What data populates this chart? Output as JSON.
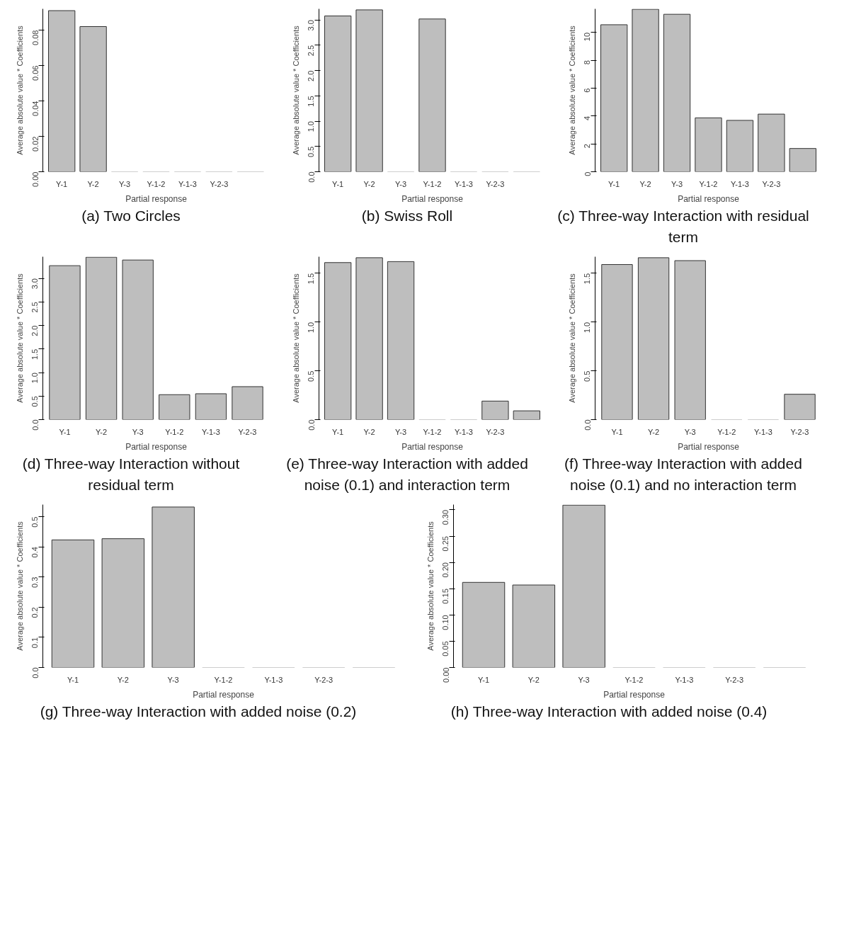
{
  "chart_data": [
    {
      "type": "bar",
      "title": "(a) Two Circles",
      "xlabel": "Partial response",
      "ylabel": "Average absolute value * Coefficients",
      "categories": [
        "Y-1",
        "Y-2",
        "Y-3",
        "Y-1-2",
        "Y-1-3",
        "Y-2-3",
        null
      ],
      "values": [
        0.091,
        0.082,
        0,
        0,
        0,
        0,
        0
      ],
      "color": "#bebebe",
      "ylim": [
        0,
        0.092
      ],
      "yticks": [
        {
          "value": 0,
          "label": "0.00"
        },
        0.02,
        0.04,
        0.06,
        0.08
      ],
      "grid": false
    },
    {
      "type": "bar",
      "title": "(b) Swiss Roll",
      "xlabel": "Partial response",
      "ylabel": "Average absolute value * Coefficients",
      "categories": [
        "Y-1",
        "Y-2",
        "Y-3",
        "Y-1-2",
        "Y-1-3",
        "Y-2-3",
        null
      ],
      "values": [
        3.08,
        3.2,
        0,
        3.02,
        0,
        0,
        0
      ],
      "color": "#bebebe",
      "ylim": [
        0,
        3.22
      ],
      "yticks": [
        {
          "value": 0,
          "label": "0.0"
        },
        0.5,
        {
          "value": 1,
          "label": "1.0"
        },
        1.5,
        {
          "value": 2,
          "label": "2.0"
        },
        2.5,
        {
          "value": 3,
          "label": "3.0"
        }
      ],
      "grid": false
    },
    {
      "type": "bar",
      "title": "(c) Three-way Interaction with residual term",
      "xlabel": "Partial response",
      "ylabel": "Average absolute value * Coefficients",
      "categories": [
        "Y-1",
        "Y-2",
        "Y-3",
        "Y-1-2",
        "Y-1-3",
        "Y-2-3",
        null
      ],
      "values": [
        10.56,
        11.67,
        11.31,
        3.87,
        3.69,
        4.14,
        1.67
      ],
      "color": "#bebebe",
      "ylim": [
        0,
        11.7
      ],
      "yticks": [
        0,
        2,
        4,
        6,
        8,
        10
      ],
      "grid": false
    },
    {
      "type": "bar",
      "title": "(d) Three-way Interaction without residual term",
      "xlabel": "Partial response",
      "ylabel": "Average absolute value * Coefficients",
      "categories": [
        "Y-1",
        "Y-2",
        "Y-3",
        "Y-1-2",
        "Y-1-3",
        "Y-2-3"
      ],
      "values": [
        3.27,
        3.45,
        3.39,
        0.53,
        0.55,
        0.7
      ],
      "color": "#bebebe",
      "ylim": [
        0,
        3.46
      ],
      "yticks": [
        {
          "value": 0,
          "label": "0.0"
        },
        0.5,
        {
          "value": 1,
          "label": "1.0"
        },
        1.5,
        {
          "value": 2,
          "label": "2.0"
        },
        2.5,
        {
          "value": 3,
          "label": "3.0"
        }
      ],
      "grid": false
    },
    {
      "type": "bar",
      "title": "(e) Three-way Interaction with added noise (0.1) and interaction term",
      "xlabel": "Partial response",
      "ylabel": "Average absolute value * Coefficients",
      "categories": [
        "Y-1",
        "Y-2",
        "Y-3",
        "Y-1-2",
        "Y-1-3",
        "Y-2-3",
        null
      ],
      "values": [
        1.61,
        1.66,
        1.62,
        0,
        0,
        0.19,
        0.09
      ],
      "color": "#bebebe",
      "ylim": [
        0,
        1.67
      ],
      "yticks": [
        {
          "value": 0,
          "label": "0.0"
        },
        0.5,
        {
          "value": 1,
          "label": "1.0"
        },
        1.5
      ],
      "grid": false
    },
    {
      "type": "bar",
      "title": "(f) Three-way Interaction with added noise (0.1) and no interaction term",
      "xlabel": "Partial response",
      "ylabel": "Average absolute value * Coefficients",
      "categories": [
        "Y-1",
        "Y-2",
        "Y-3",
        "Y-1-2",
        "Y-1-3",
        "Y-2-3"
      ],
      "values": [
        1.59,
        1.66,
        1.63,
        0,
        0,
        0.26
      ],
      "color": "#bebebe",
      "ylim": [
        0,
        1.67
      ],
      "yticks": [
        {
          "value": 0,
          "label": "0.0"
        },
        0.5,
        {
          "value": 1,
          "label": "1.0"
        },
        1.5
      ],
      "grid": false
    },
    {
      "type": "bar",
      "title": "(g) Three-way Interaction with added noise (0.2)",
      "xlabel": "Partial response",
      "ylabel": "Average absolute value * Coefficients",
      "categories": [
        "Y-1",
        "Y-2",
        "Y-3",
        "Y-1-2",
        "Y-1-3",
        "Y-2-3",
        null
      ],
      "values": [
        0.423,
        0.427,
        0.532,
        0,
        0,
        0,
        0
      ],
      "color": "#bebebe",
      "ylim": [
        0,
        0.54
      ],
      "yticks": [
        {
          "value": 0,
          "label": "0.0"
        },
        0.1,
        0.2,
        0.3,
        0.4,
        0.5
      ],
      "grid": false
    },
    {
      "type": "bar",
      "title": "(h) Three-way Interaction with added noise (0.4)",
      "xlabel": "Partial response",
      "ylabel": "Average absolute value * Coefficients",
      "categories": [
        "Y-1",
        "Y-2",
        "Y-3",
        "Y-1-2",
        "Y-1-3",
        "Y-2-3",
        null
      ],
      "values": [
        0.162,
        0.157,
        0.309,
        0,
        0,
        0,
        0
      ],
      "color": "#bebebe",
      "ylim": [
        0,
        0.31
      ],
      "yticks": [
        {
          "value": 0,
          "label": "0.00"
        },
        0.05,
        {
          "value": 0.1,
          "label": "0.10"
        },
        0.15,
        {
          "value": 0.2,
          "label": "0.20"
        },
        0.25,
        {
          "value": 0.3,
          "label": "0.30"
        }
      ],
      "grid": false
    }
  ]
}
